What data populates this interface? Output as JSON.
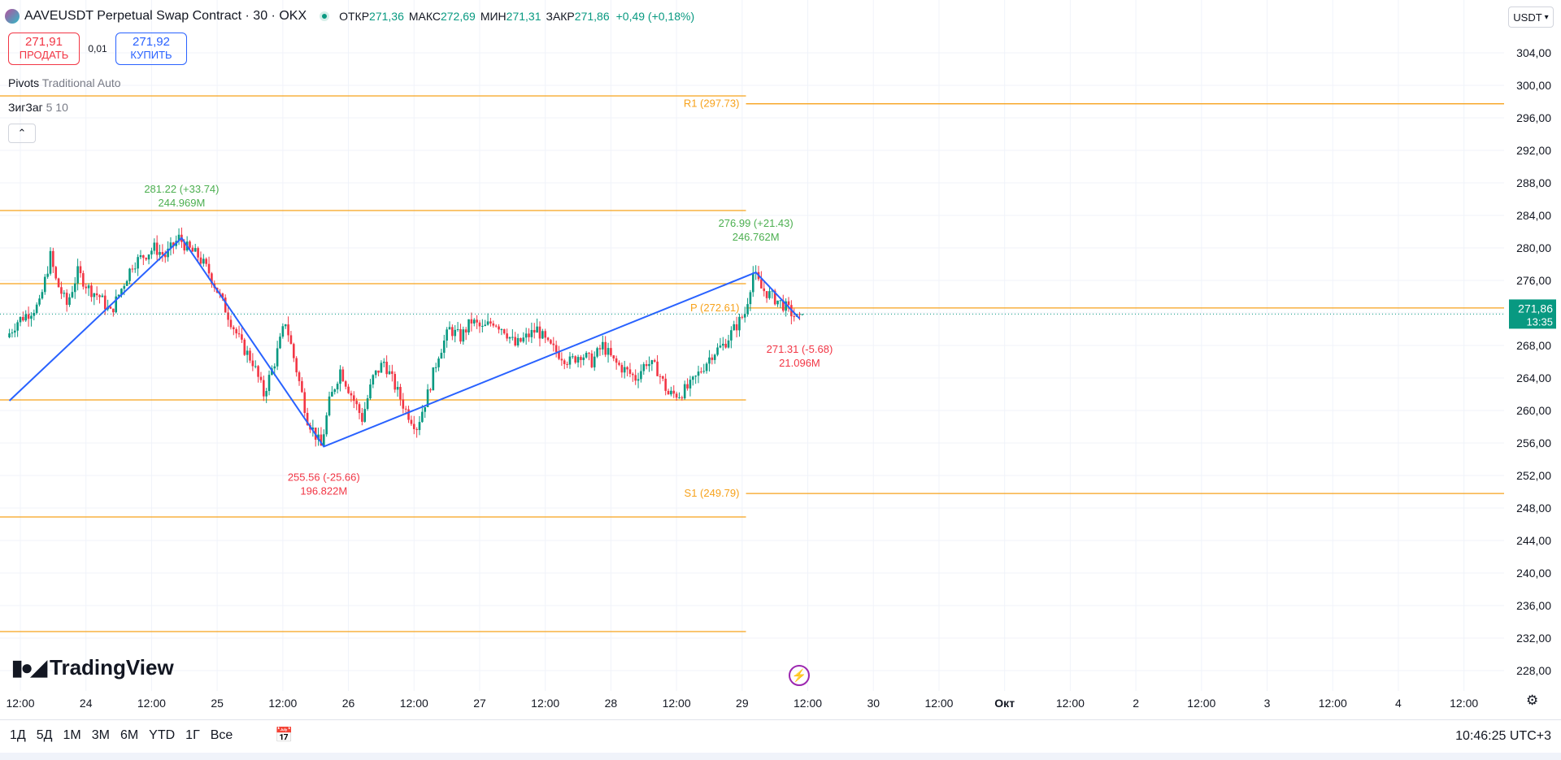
{
  "header": {
    "title": "AAVEUSDT Perpetual Swap Contract · 30 · OKX",
    "open_label": "ОТКР",
    "open": "271,36",
    "high_label": "МАКС",
    "high": "272,69",
    "low_label": "МИН",
    "low": "271,31",
    "close_label": "ЗАКР",
    "close": "271,86",
    "change": "+0,49 (+0,18%)"
  },
  "trade": {
    "sell_price": "271,91",
    "sell_label": "ПРОДАТЬ",
    "spread": "0,01",
    "buy_price": "271,92",
    "buy_label": "КУПИТЬ"
  },
  "indicators": {
    "pivots_name": "Pivots",
    "pivots_params": "Traditional Auto",
    "zigzag_name": "ЗигЗаг",
    "zigzag_params": "5 10",
    "collapse_icon": "chevron-up-icon"
  },
  "currency": "USDT",
  "bottom": {
    "ranges": [
      "1Д",
      "5Д",
      "1М",
      "3М",
      "6М",
      "YTD",
      "1Г",
      "Все"
    ],
    "time": "10:46:25 UTC+3"
  },
  "colors": {
    "up": "#089981",
    "down": "#f23645",
    "zigzag": "#2962ff",
    "pivot": "#f7a21b",
    "zz_high_label": "#4caf50",
    "zz_low_label": "#f23645"
  },
  "chart_data": {
    "type": "candlestick",
    "ylim": [
      225.5,
      309.5
    ],
    "y_ticks": [
      "304,00",
      "300,00",
      "296,00",
      "292,00",
      "288,00",
      "284,00",
      "280,00",
      "276,00",
      "272,00",
      "268,00",
      "264,00",
      "260,00",
      "256,00",
      "252,00",
      "248,00",
      "244,00",
      "240,00",
      "236,00",
      "232,00",
      "228,00"
    ],
    "y_tick_values": [
      304,
      300,
      296,
      292,
      288,
      284,
      280,
      276,
      272,
      268,
      264,
      260,
      256,
      252,
      248,
      244,
      240,
      236,
      232,
      228
    ],
    "x_ticks": [
      {
        "t": 0,
        "label": "12:00"
      },
      {
        "t": 12,
        "label": "24"
      },
      {
        "t": 24,
        "label": "12:00"
      },
      {
        "t": 36,
        "label": "25"
      },
      {
        "t": 48,
        "label": "12:00"
      },
      {
        "t": 60,
        "label": "26"
      },
      {
        "t": 72,
        "label": "12:00"
      },
      {
        "t": 84,
        "label": "27"
      },
      {
        "t": 96,
        "label": "12:00"
      },
      {
        "t": 108,
        "label": "28"
      },
      {
        "t": 120,
        "label": "12:00"
      },
      {
        "t": 132,
        "label": "29"
      },
      {
        "t": 144,
        "label": "12:00"
      },
      {
        "t": 156,
        "label": "30"
      },
      {
        "t": 168,
        "label": "12:00"
      },
      {
        "t": 180,
        "label": "Окт"
      },
      {
        "t": 192,
        "label": "12:00"
      },
      {
        "t": 204,
        "label": "2"
      },
      {
        "t": 216,
        "label": "12:00"
      },
      {
        "t": 228,
        "label": "3"
      },
      {
        "t": 240,
        "label": "12:00"
      },
      {
        "t": 252,
        "label": "4"
      },
      {
        "t": 264,
        "label": "12:00"
      }
    ],
    "x_tick_units": "hours from Sep 23 12:00",
    "last_price": "271,86",
    "countdown": "13:35",
    "last_value": 271.86,
    "pivot_levels": [
      {
        "label": "R1 (297.73)",
        "value": 297.73
      },
      {
        "label": "P (272.61)",
        "value": 272.61
      },
      {
        "label": "S1 (249.79)",
        "value": 249.79
      }
    ],
    "previous_period_levels": [
      298.7,
      284.6,
      275.6,
      261.3,
      246.9,
      232.8
    ],
    "zigzag_points": [
      {
        "t": -2,
        "y": 261.2
      },
      {
        "t": 29.5,
        "y": 281.22
      },
      {
        "t": 55.5,
        "y": 255.56
      },
      {
        "t": 134.5,
        "y": 276.99
      },
      {
        "t": 142.5,
        "y": 271.31
      }
    ],
    "zigzag_labels": [
      {
        "price": "281.22 (+33.74)",
        "volume": "244.969M",
        "kind": "high"
      },
      {
        "price": "276.99 (+21.43)",
        "volume": "246.762M",
        "kind": "high"
      },
      {
        "price": "255.56 (-25.66)",
        "volume": "196.822M",
        "kind": "low"
      },
      {
        "price": "271.31 (-5.68)",
        "volume": "21.096M",
        "kind": "low"
      }
    ],
    "price_path_t": [
      -2,
      0,
      4,
      6,
      7,
      9,
      11,
      13,
      15,
      17,
      19,
      21,
      23,
      25,
      27,
      29.5,
      31,
      33,
      35,
      37,
      39,
      41,
      43,
      45,
      47,
      49,
      51,
      53,
      55.5,
      57,
      59,
      61,
      63,
      65,
      67,
      69,
      71,
      73,
      75,
      77,
      79,
      81,
      83,
      85,
      87,
      89,
      91,
      93,
      95,
      97,
      99,
      101,
      103,
      105,
      107,
      109,
      111,
      113,
      115,
      117,
      119,
      121,
      123,
      125,
      127,
      129,
      131,
      133,
      134.5,
      136,
      138,
      140,
      142.5,
      143
    ],
    "price_path_y": [
      269,
      271,
      273,
      279,
      276,
      273,
      277,
      275,
      274,
      272,
      275,
      278,
      279,
      280,
      279,
      281.22,
      280,
      279,
      277,
      274,
      271,
      268,
      266,
      262,
      266,
      271,
      265,
      259,
      255.56,
      261,
      265,
      262,
      259,
      264,
      266,
      263,
      260,
      258,
      262,
      267,
      270,
      269,
      271,
      270,
      271,
      270,
      268,
      269,
      270,
      268,
      267,
      266,
      267,
      266,
      268,
      266,
      265,
      264,
      266,
      265,
      262,
      262,
      263,
      265,
      267,
      268,
      270,
      272,
      276.99,
      275,
      274,
      273,
      271.31,
      271.86
    ]
  }
}
